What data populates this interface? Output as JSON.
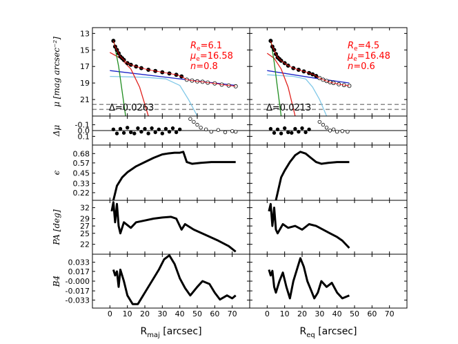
{
  "chart_data": {
    "type": "line",
    "title": "",
    "colors": {
      "data": "#000000",
      "bulge": "#e0201c",
      "nucleus": "#1e8c1e",
      "disk": "#1c26c8",
      "bar": "#80c8e8",
      "total": "#ff0000",
      "limit": "#888888"
    },
    "x_ticks": [
      "0",
      "10",
      "20",
      "30",
      "40",
      "50",
      "60",
      "70"
    ],
    "x_range": [
      -10,
      80
    ],
    "columns": [
      {
        "id": "maj",
        "xlabel": "R",
        "xsub": "maj",
        "xunit": " [arcsec]",
        "fit": {
          "Re": "6.1",
          "mu_e": "16.58",
          "n": "0.8",
          "delta": "0.0263"
        }
      },
      {
        "id": "eq",
        "xlabel": "R",
        "xsub": "eq",
        "xunit": " [arcsec]",
        "fit": {
          "Re": "4.5",
          "mu_e": "16.48",
          "n": "0.6",
          "delta": "0.0213"
        }
      }
    ],
    "rows": [
      {
        "id": "mu",
        "ylabel": "μ [mag arcsec⁻²]",
        "ylim": [
          23,
          12.3
        ],
        "yticks": [
          "13",
          "15",
          "17",
          "19",
          "21"
        ]
      },
      {
        "id": "dmu",
        "ylabel": "Δμ",
        "ylim": [
          0.25,
          -0.25
        ],
        "yticks": [
          "-0.1",
          "0.0",
          "0.1"
        ]
      },
      {
        "id": "eps",
        "ylabel": "ϵ",
        "ylim": [
          0.13,
          0.78
        ],
        "yticks": [
          "0.22",
          "0.33",
          "0.45",
          "0.57",
          "0.68"
        ]
      },
      {
        "id": "pa",
        "ylabel": "PA [deg]",
        "ylim": [
          19.3,
          34
        ],
        "yticks": [
          "22",
          "25",
          "27",
          "29",
          "32"
        ]
      },
      {
        "id": "b4",
        "ylabel": "B4",
        "ylim": [
          -0.047,
          0.047
        ],
        "yticks": [
          "0.033",
          "0.017",
          "-0.000",
          "-0.017",
          "-0.033"
        ]
      }
    ],
    "annotation_labels": {
      "Re": "R",
      "Re_sub": "e",
      "mu": "μ",
      "mu_sub": "e",
      "n": "n",
      "delta": "Δ"
    },
    "series": {
      "maj": {
        "mu_filled": [
          [
            2,
            13.9
          ],
          [
            3,
            14.6
          ],
          [
            4,
            15.0
          ],
          [
            5,
            15.4
          ],
          [
            6,
            15.8
          ],
          [
            7,
            16.0
          ],
          [
            8,
            16.2
          ],
          [
            10,
            16.6
          ],
          [
            12,
            16.8
          ],
          [
            15,
            17.0
          ],
          [
            18,
            17.2
          ],
          [
            22,
            17.4
          ],
          [
            26,
            17.55
          ],
          [
            30,
            17.7
          ],
          [
            34,
            17.85
          ],
          [
            38,
            18.0
          ],
          [
            41,
            18.2
          ]
        ],
        "mu_open": [
          [
            44,
            18.6
          ],
          [
            47,
            18.7
          ],
          [
            50,
            18.8
          ],
          [
            53,
            18.85
          ],
          [
            56,
            18.95
          ],
          [
            60,
            19.05
          ],
          [
            64,
            19.2
          ],
          [
            68,
            19.3
          ],
          [
            72,
            19.4
          ]
        ],
        "nucleus": [
          [
            2,
            13.7
          ],
          [
            5,
            17.0
          ],
          [
            9,
            23
          ]
        ],
        "bulge": [
          [
            0,
            15.3
          ],
          [
            6,
            16.0
          ],
          [
            12,
            17.3
          ],
          [
            17,
            19.5
          ],
          [
            22,
            23
          ]
        ],
        "disk": [
          [
            0,
            17.5
          ],
          [
            20,
            18.0
          ],
          [
            40,
            18.5
          ],
          [
            60,
            19.0
          ],
          [
            72,
            19.3
          ]
        ],
        "bar": [
          [
            0,
            18.2
          ],
          [
            20,
            18.3
          ],
          [
            32,
            18.5
          ],
          [
            40,
            19.3
          ],
          [
            45,
            21.0
          ],
          [
            50,
            23
          ]
        ],
        "dmu_filled": [
          [
            2,
            -0.02
          ],
          [
            4,
            0.05
          ],
          [
            6,
            -0.03
          ],
          [
            8,
            0.04
          ],
          [
            10,
            -0.05
          ],
          [
            12,
            0.03
          ],
          [
            14,
            0.05
          ],
          [
            16,
            -0.04
          ],
          [
            18,
            0.02
          ],
          [
            20,
            -0.03
          ],
          [
            22,
            0.05
          ],
          [
            24,
            -0.04
          ],
          [
            26,
            0.03
          ],
          [
            28,
            -0.02
          ],
          [
            30,
            0.05
          ],
          [
            32,
            -0.03
          ],
          [
            34,
            0.02
          ],
          [
            36,
            -0.04
          ],
          [
            38,
            0.03
          ],
          [
            40,
            -0.02
          ]
        ],
        "dmu_open": [
          [
            46,
            -0.2
          ],
          [
            48,
            -0.15
          ],
          [
            50,
            -0.1
          ],
          [
            52,
            -0.05
          ],
          [
            55,
            -0.02
          ],
          [
            58,
            0.02
          ],
          [
            62,
            -0.01
          ],
          [
            66,
            0.03
          ],
          [
            70,
            0.01
          ],
          [
            72,
            0.02
          ]
        ],
        "eps": [
          [
            2,
            0.13
          ],
          [
            4,
            0.3
          ],
          [
            7,
            0.4
          ],
          [
            10,
            0.46
          ],
          [
            15,
            0.53
          ],
          [
            20,
            0.58
          ],
          [
            25,
            0.63
          ],
          [
            30,
            0.67
          ],
          [
            33,
            0.68
          ],
          [
            37,
            0.69
          ],
          [
            40,
            0.69
          ],
          [
            42,
            0.7
          ],
          [
            44,
            0.58
          ],
          [
            47,
            0.56
          ],
          [
            52,
            0.57
          ],
          [
            58,
            0.58
          ],
          [
            65,
            0.58
          ],
          [
            72,
            0.58
          ]
        ],
        "pa": [
          [
            1,
            31
          ],
          [
            2,
            33.5
          ],
          [
            3,
            28
          ],
          [
            4,
            33
          ],
          [
            5,
            27
          ],
          [
            6,
            25
          ],
          [
            8,
            28
          ],
          [
            12,
            26.5
          ],
          [
            15,
            28
          ],
          [
            20,
            28.5
          ],
          [
            25,
            29
          ],
          [
            30,
            29.3
          ],
          [
            35,
            29.5
          ],
          [
            38,
            29
          ],
          [
            41,
            26
          ],
          [
            43,
            27.5
          ],
          [
            48,
            26
          ],
          [
            55,
            24.5
          ],
          [
            62,
            23
          ],
          [
            68,
            21.5
          ],
          [
            72,
            20
          ]
        ],
        "b4": [
          [
            2,
            0.02
          ],
          [
            3,
            0.01
          ],
          [
            4,
            0.017
          ],
          [
            5,
            -0.01
          ],
          [
            6,
            0.02
          ],
          [
            8,
            0.0
          ],
          [
            10,
            -0.025
          ],
          [
            13,
            -0.04
          ],
          [
            16,
            -0.04
          ],
          [
            20,
            -0.02
          ],
          [
            25,
            0.005
          ],
          [
            28,
            0.02
          ],
          [
            31,
            0.038
          ],
          [
            34,
            0.045
          ],
          [
            37,
            0.03
          ],
          [
            40,
            0.005
          ],
          [
            43,
            -0.012
          ],
          [
            46,
            -0.025
          ],
          [
            50,
            -0.01
          ],
          [
            53,
            0.0
          ],
          [
            57,
            -0.005
          ],
          [
            60,
            -0.02
          ],
          [
            63,
            -0.032
          ],
          [
            67,
            -0.025
          ],
          [
            70,
            -0.03
          ],
          [
            72,
            -0.025
          ]
        ]
      },
      "eq": {
        "mu_filled": [
          [
            2,
            13.9
          ],
          [
            3,
            14.6
          ],
          [
            4,
            15.0
          ],
          [
            5,
            15.5
          ],
          [
            6,
            15.9
          ],
          [
            7,
            16.1
          ],
          [
            8,
            16.3
          ],
          [
            10,
            16.6
          ],
          [
            12,
            16.9
          ],
          [
            15,
            17.2
          ],
          [
            18,
            17.4
          ],
          [
            21,
            17.6
          ],
          [
            24,
            17.8
          ],
          [
            26,
            17.95
          ],
          [
            28,
            18.15
          ]
        ],
        "mu_open": [
          [
            30,
            18.4
          ],
          [
            32,
            18.6
          ],
          [
            34,
            18.75
          ],
          [
            36,
            18.9
          ],
          [
            38,
            19.0
          ],
          [
            41,
            19.15
          ],
          [
            44,
            19.25
          ],
          [
            47,
            19.35
          ]
        ],
        "nucleus": [
          [
            2,
            13.7
          ],
          [
            4,
            16.5
          ],
          [
            8,
            23
          ]
        ],
        "bulge": [
          [
            0,
            15.4
          ],
          [
            4,
            16.0
          ],
          [
            8,
            17.3
          ],
          [
            12,
            19.5
          ],
          [
            16,
            23
          ]
        ],
        "disk": [
          [
            0,
            17.5
          ],
          [
            15,
            18.0
          ],
          [
            30,
            18.5
          ],
          [
            47,
            19.0
          ]
        ],
        "bar": [
          [
            0,
            18.0
          ],
          [
            15,
            18.2
          ],
          [
            22,
            18.5
          ],
          [
            26,
            19.5
          ],
          [
            30,
            21.0
          ],
          [
            34,
            23
          ]
        ],
        "dmu_filled": [
          [
            2,
            -0.03
          ],
          [
            4,
            0.04
          ],
          [
            6,
            -0.02
          ],
          [
            8,
            0.05
          ],
          [
            10,
            -0.04
          ],
          [
            12,
            0.03
          ],
          [
            14,
            0.04
          ],
          [
            16,
            -0.03
          ],
          [
            18,
            0.02
          ],
          [
            20,
            -0.04
          ],
          [
            22,
            0.03
          ],
          [
            24,
            -0.02
          ]
        ],
        "dmu_open": [
          [
            30,
            -0.15
          ],
          [
            32,
            -0.1
          ],
          [
            34,
            -0.05
          ],
          [
            36,
            0.0
          ],
          [
            38,
            -0.02
          ],
          [
            40,
            0.02
          ],
          [
            43,
            0.01
          ],
          [
            46,
            0.02
          ]
        ],
        "eps": [
          [
            5,
            0.13
          ],
          [
            8,
            0.4
          ],
          [
            10,
            0.48
          ],
          [
            13,
            0.58
          ],
          [
            16,
            0.66
          ],
          [
            19,
            0.7
          ],
          [
            22,
            0.68
          ],
          [
            25,
            0.63
          ],
          [
            28,
            0.58
          ],
          [
            31,
            0.56
          ],
          [
            35,
            0.57
          ],
          [
            40,
            0.58
          ],
          [
            47,
            0.58
          ]
        ],
        "pa": [
          [
            1,
            31
          ],
          [
            2,
            33
          ],
          [
            3,
            27
          ],
          [
            4,
            32
          ],
          [
            5,
            26
          ],
          [
            6,
            25
          ],
          [
            9,
            27.5
          ],
          [
            12,
            26.5
          ],
          [
            16,
            27
          ],
          [
            20,
            26
          ],
          [
            24,
            27.5
          ],
          [
            28,
            27
          ],
          [
            32,
            26
          ],
          [
            36,
            25
          ],
          [
            40,
            24
          ],
          [
            43,
            23
          ],
          [
            47,
            21
          ]
        ],
        "b4": [
          [
            1,
            0.02
          ],
          [
            2,
            0.01
          ],
          [
            3,
            0.018
          ],
          [
            4,
            -0.01
          ],
          [
            5,
            -0.02
          ],
          [
            7,
            0.0
          ],
          [
            9,
            0.015
          ],
          [
            11,
            -0.01
          ],
          [
            13,
            -0.03
          ],
          [
            15,
            0.0
          ],
          [
            17,
            0.02
          ],
          [
            19,
            0.04
          ],
          [
            21,
            0.025
          ],
          [
            23,
            0.0
          ],
          [
            25,
            -0.015
          ],
          [
            27,
            -0.03
          ],
          [
            29,
            -0.02
          ],
          [
            31,
            0.0
          ],
          [
            34,
            -0.01
          ],
          [
            37,
            -0.003
          ],
          [
            40,
            -0.02
          ],
          [
            43,
            -0.03
          ],
          [
            47,
            -0.025
          ]
        ]
      }
    }
  }
}
